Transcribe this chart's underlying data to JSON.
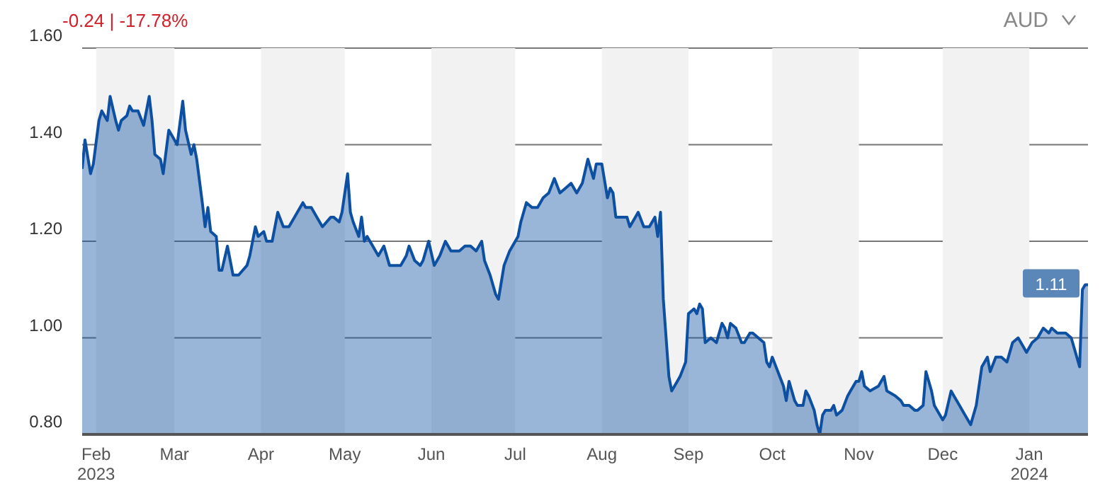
{
  "chart_data": {
    "type": "area",
    "annotations": [
      "-0.24 | -17.78%",
      "AUD",
      {
        "text": "1.11",
        "x": "2024-01-22",
        "y": 1.11
      }
    ],
    "x": [
      "2023-01-27",
      "2023-01-28",
      "2023-01-30",
      "2023-01-31",
      "2023-02-02",
      "2023-02-03",
      "2023-02-05",
      "2023-02-06",
      "2023-02-08",
      "2023-02-09",
      "2023-02-10",
      "2023-02-12",
      "2023-02-13",
      "2023-02-14",
      "2023-02-16",
      "2023-02-18",
      "2023-02-20",
      "2023-02-21",
      "2023-02-22",
      "2023-02-24",
      "2023-02-25",
      "2023-02-27",
      "2023-02-28",
      "2023-03-02",
      "2023-03-04",
      "2023-03-05",
      "2023-03-07",
      "2023-03-08",
      "2023-03-09",
      "2023-03-11",
      "2023-03-12",
      "2023-03-13",
      "2023-03-14",
      "2023-03-16",
      "2023-03-17",
      "2023-03-18",
      "2023-03-20",
      "2023-03-21",
      "2023-03-22",
      "2023-03-24",
      "2023-03-27",
      "2023-03-28",
      "2023-03-30",
      "2023-03-31",
      "2023-04-02",
      "2023-04-03",
      "2023-04-05",
      "2023-04-07",
      "2023-04-09",
      "2023-04-11",
      "2023-04-13",
      "2023-04-16",
      "2023-04-17",
      "2023-04-19",
      "2023-04-21",
      "2023-04-23",
      "2023-04-26",
      "2023-04-27",
      "2023-04-29",
      "2023-04-30",
      "2023-05-02",
      "2023-05-03",
      "2023-05-04",
      "2023-05-06",
      "2023-05-07",
      "2023-05-08",
      "2023-05-09",
      "2023-05-11",
      "2023-05-13",
      "2023-05-15",
      "2023-05-17",
      "2023-05-19",
      "2023-05-21",
      "2023-05-23",
      "2023-05-24",
      "2023-05-26",
      "2023-05-28",
      "2023-05-29",
      "2023-05-31",
      "2023-06-02",
      "2023-06-04",
      "2023-06-06",
      "2023-06-08",
      "2023-06-11",
      "2023-06-13",
      "2023-06-15",
      "2023-06-17",
      "2023-06-19",
      "2023-06-20",
      "2023-06-22",
      "2023-06-24",
      "2023-06-25",
      "2023-06-27",
      "2023-06-29",
      "2023-07-02",
      "2023-07-03",
      "2023-07-05",
      "2023-07-07",
      "2023-07-09",
      "2023-07-11",
      "2023-07-13",
      "2023-07-15",
      "2023-07-17",
      "2023-07-19",
      "2023-07-21",
      "2023-07-23",
      "2023-07-25",
      "2023-07-27",
      "2023-07-29",
      "2023-07-30",
      "2023-08-01",
      "2023-08-03",
      "2023-08-04",
      "2023-08-05",
      "2023-08-06",
      "2023-08-08",
      "2023-08-10",
      "2023-08-11",
      "2023-08-13",
      "2023-08-14",
      "2023-08-16",
      "2023-08-18",
      "2023-08-20",
      "2023-08-21",
      "2023-08-22",
      "2023-08-23",
      "2023-08-25",
      "2023-08-26",
      "2023-08-28",
      "2023-08-29",
      "2023-08-31",
      "2023-09-01",
      "2023-09-03",
      "2023-09-04",
      "2023-09-05",
      "2023-09-06",
      "2023-09-07",
      "2023-09-09",
      "2023-09-11",
      "2023-09-13",
      "2023-09-14",
      "2023-09-15",
      "2023-09-16",
      "2023-09-18",
      "2023-09-20",
      "2023-09-21",
      "2023-09-23",
      "2023-09-24",
      "2023-09-26",
      "2023-09-28",
      "2023-09-29",
      "2023-09-30",
      "2023-10-01",
      "2023-10-03",
      "2023-10-05",
      "2023-10-06",
      "2023-10-07",
      "2023-10-09",
      "2023-10-10",
      "2023-10-12",
      "2023-10-13",
      "2023-10-14",
      "2023-10-16",
      "2023-10-17",
      "2023-10-18",
      "2023-10-19",
      "2023-10-20",
      "2023-10-22",
      "2023-10-23",
      "2023-10-24",
      "2023-10-26",
      "2023-10-28",
      "2023-10-29",
      "2023-10-31",
      "2023-11-01",
      "2023-11-02",
      "2023-11-03",
      "2023-11-05",
      "2023-11-08",
      "2023-11-10",
      "2023-11-11",
      "2023-11-14",
      "2023-11-16",
      "2023-11-17",
      "2023-11-19",
      "2023-11-21",
      "2023-11-22",
      "2023-11-24",
      "2023-11-25",
      "2023-11-27",
      "2023-11-28",
      "2023-12-01",
      "2023-12-02",
      "2023-12-04",
      "2023-12-05",
      "2023-12-07",
      "2023-12-09",
      "2023-12-11",
      "2023-12-13",
      "2023-12-15",
      "2023-12-17",
      "2023-12-18",
      "2023-12-20",
      "2023-12-22",
      "2023-12-24",
      "2023-12-26",
      "2023-12-28",
      "2023-12-29",
      "2023-12-31",
      "2024-01-02",
      "2024-01-04",
      "2024-01-06",
      "2024-01-08",
      "2024-01-09",
      "2024-01-11",
      "2024-01-12",
      "2024-01-14",
      "2024-01-16",
      "2024-01-18",
      "2024-01-19",
      "2024-01-20",
      "2024-01-21",
      "2024-01-22"
    ],
    "series": [
      {
        "color": "#0d4fa0",
        "values": [
          1.35,
          1.41,
          1.34,
          1.36,
          1.45,
          1.47,
          1.45,
          1.5,
          1.45,
          1.43,
          1.45,
          1.46,
          1.48,
          1.47,
          1.47,
          1.44,
          1.5,
          1.45,
          1.38,
          1.37,
          1.34,
          1.43,
          1.42,
          1.4,
          1.49,
          1.43,
          1.38,
          1.4,
          1.37,
          1.28,
          1.23,
          1.27,
          1.22,
          1.21,
          1.14,
          1.14,
          1.19,
          1.16,
          1.13,
          1.13,
          1.15,
          1.17,
          1.23,
          1.21,
          1.22,
          1.2,
          1.2,
          1.26,
          1.23,
          1.23,
          1.25,
          1.28,
          1.27,
          1.27,
          1.25,
          1.23,
          1.25,
          1.25,
          1.24,
          1.26,
          1.34,
          1.26,
          1.24,
          1.21,
          1.25,
          1.2,
          1.21,
          1.19,
          1.17,
          1.19,
          1.15,
          1.15,
          1.15,
          1.17,
          1.19,
          1.16,
          1.15,
          1.16,
          1.2,
          1.15,
          1.17,
          1.2,
          1.18,
          1.18,
          1.19,
          1.19,
          1.18,
          1.2,
          1.16,
          1.13,
          1.09,
          1.08,
          1.15,
          1.18,
          1.21,
          1.24,
          1.28,
          1.27,
          1.27,
          1.29,
          1.3,
          1.33,
          1.3,
          1.31,
          1.32,
          1.3,
          1.32,
          1.37,
          1.33,
          1.36,
          1.36,
          1.29,
          1.31,
          1.3,
          1.25,
          1.25,
          1.25,
          1.23,
          1.25,
          1.26,
          1.23,
          1.23,
          1.25,
          1.21,
          1.26,
          1.08,
          0.92,
          0.89,
          0.91,
          0.92,
          0.95,
          1.05,
          1.06,
          1.05,
          1.07,
          1.06,
          0.99,
          1.0,
          0.99,
          1.03,
          1.02,
          1.0,
          1.03,
          1.02,
          0.99,
          0.99,
          1.01,
          1.01,
          1.0,
          0.99,
          0.95,
          0.94,
          0.96,
          0.93,
          0.9,
          0.87,
          0.91,
          0.87,
          0.86,
          0.86,
          0.89,
          0.88,
          0.85,
          0.82,
          0.8,
          0.84,
          0.85,
          0.85,
          0.86,
          0.84,
          0.85,
          0.88,
          0.89,
          0.91,
          0.91,
          0.93,
          0.9,
          0.89,
          0.9,
          0.92,
          0.89,
          0.88,
          0.87,
          0.86,
          0.86,
          0.85,
          0.85,
          0.86,
          0.93,
          0.89,
          0.86,
          0.83,
          0.84,
          0.89,
          0.88,
          0.86,
          0.84,
          0.82,
          0.86,
          0.94,
          0.96,
          0.93,
          0.96,
          0.96,
          0.95,
          0.99,
          1.0,
          0.99,
          0.97,
          0.99,
          1.0,
          1.02,
          1.01,
          1.02,
          1.01,
          1.01,
          1.01,
          1.0,
          0.96,
          0.94,
          1.1,
          1.11,
          1.11
        ]
      }
    ],
    "xlim": [
      "2023-01-27",
      "2024-01-22"
    ],
    "xticks": [
      {
        "value": "2023-02-01",
        "label": "Feb\n2023"
      },
      {
        "value": "2023-03-01",
        "label": "Mar"
      },
      {
        "value": "2023-04-01",
        "label": "Apr"
      },
      {
        "value": "2023-05-01",
        "label": "May"
      },
      {
        "value": "2023-06-01",
        "label": "Jun"
      },
      {
        "value": "2023-07-01",
        "label": "Jul"
      },
      {
        "value": "2023-08-01",
        "label": "Aug"
      },
      {
        "value": "2023-09-01",
        "label": "Sep"
      },
      {
        "value": "2023-10-01",
        "label": "Oct"
      },
      {
        "value": "2023-11-01",
        "label": "Nov"
      },
      {
        "value": "2023-12-01",
        "label": "Dec"
      },
      {
        "value": "2024-01-01",
        "label": "Jan\n2024"
      }
    ],
    "ylim": [
      0.8,
      1.6
    ],
    "yticks": [
      {
        "value": 0.8,
        "label": "0.80"
      },
      {
        "value": 1.0,
        "label": "1.00"
      },
      {
        "value": 1.2,
        "label": "1.20"
      },
      {
        "value": 1.4,
        "label": "1.40"
      },
      {
        "value": 1.6,
        "label": "1.60"
      }
    ],
    "bands": [
      {
        "axis": "x",
        "from": "2023-02-01",
        "to": "2023-03-01",
        "color": "#f2f2f2"
      },
      {
        "axis": "x",
        "from": "2023-04-01",
        "to": "2023-05-01",
        "color": "#f2f2f2"
      },
      {
        "axis": "x",
        "from": "2023-06-01",
        "to": "2023-07-01",
        "color": "#f2f2f2"
      },
      {
        "axis": "x",
        "from": "2023-08-01",
        "to": "2023-09-01",
        "color": "#f2f2f2"
      },
      {
        "axis": "x",
        "from": "2023-10-01",
        "to": "2023-11-01",
        "color": "#f2f2f2"
      },
      {
        "axis": "x",
        "from": "2023-12-01",
        "to": "2024-01-01",
        "color": "#f2f2f2"
      }
    ],
    "grid": "y"
  }
}
